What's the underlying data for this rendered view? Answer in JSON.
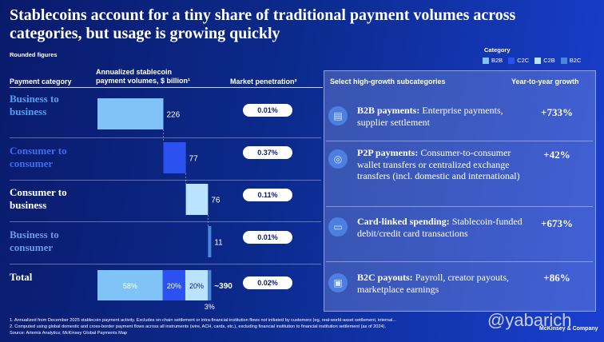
{
  "header": {
    "title": "Stablecoins account for a tiny share of traditional payment volumes across categories, but usage is growing quickly",
    "note": "Rounded figures"
  },
  "legend": {
    "title": "Category",
    "items": [
      {
        "label": "B2B",
        "color": "#7fc3f7"
      },
      {
        "label": "C2C",
        "color": "#2b52f0"
      },
      {
        "label": "C2B",
        "color": "#b9e3ff"
      },
      {
        "label": "B2C",
        "color": "#4a86d8"
      }
    ]
  },
  "columns": {
    "category": "Payment category",
    "volume_line1": "Annualized stablecoin",
    "volume_line2": "payment volumes, $ billion¹",
    "penetration": "Market penetration²",
    "subcategories": "Select high-growth subcategories",
    "growth": "Year-to-year growth"
  },
  "chart_data": {
    "type": "bar",
    "subtype": "waterfall",
    "xlabel": "Annualized stablecoin payment volumes, $ billion¹",
    "categories": [
      "Business to business",
      "Consumer to consumer",
      "Consumer to business",
      "Business to consumer"
    ],
    "values": [
      226,
      77,
      76,
      11
    ],
    "value_labels": [
      "226",
      "77",
      "76",
      "11"
    ],
    "colors": [
      "#7fc3f7",
      "#2b52f0",
      "#b9e3ff",
      "#4a86d8"
    ],
    "market_penetration": [
      "0.01%",
      "0.37%",
      "0.11%",
      "0.01%"
    ],
    "total": {
      "label": "Total",
      "value": 390,
      "value_label": "~390",
      "penetration": "0.02%",
      "shares": [
        {
          "category": "B2B",
          "share": 58,
          "label": "58%"
        },
        {
          "category": "C2C",
          "share": 20,
          "label": "20%"
        },
        {
          "category": "C2B",
          "share": 20,
          "label": "20%"
        },
        {
          "category": "B2C",
          "share": 3,
          "label": "3%"
        }
      ]
    }
  },
  "subcategories": [
    {
      "icon": "document-icon",
      "title": "B2B payments:",
      "text": " Enterprise payments, supplier settlement",
      "growth": "+733%"
    },
    {
      "icon": "globe-icon",
      "title": "P2P payments:",
      "text": " Consumer-to-consumer wallet transfers or centralized exchange transfers (incl. domestic and international)",
      "growth": "+42%"
    },
    {
      "icon": "card-icon",
      "title": "Card-linked spending:",
      "text": " Stablecoin-funded debit/credit card transactions",
      "growth": "+673%"
    },
    {
      "icon": "id-card-icon",
      "title": "B2C payouts:",
      "text": " Payroll, creator payouts, marketplace earnings",
      "growth": "+86%"
    }
  ],
  "footnotes": [
    "1.   Annualized from December 2025 stablecoin payment activity. Excludes on-chain settlement or intra-financial-institution flows not initiated by customers (eg, real-world-asset settlement, internal...",
    "2.   Computed using global domestic and cross-border payment flows across all instruments (wire, ACH, cards, etc.), excluding financial institution to financial institution settlement (as of 2024).",
    "Source: Artemis Analytics; McKinsey Global Payments Map"
  ],
  "watermark": "@yabarich",
  "brand": "McKinsey & Company"
}
